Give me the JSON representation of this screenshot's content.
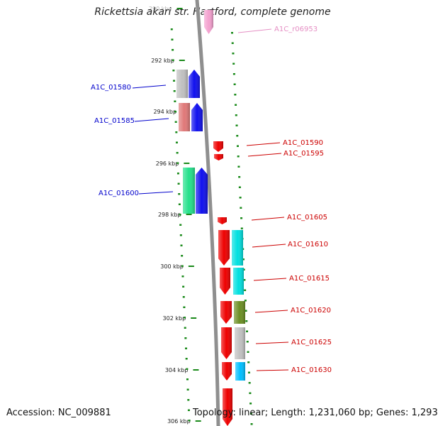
{
  "title": "Rickettsia akari str. Hartford, complete genome",
  "footer": {
    "accession": "Accession: NC_009881",
    "stats": "Topology: linear; Length: 1,231,060 bp; Genes: 1,293"
  },
  "scale_ticks": [
    "290 kbp",
    "292 kbp",
    "294 kbp",
    "296 kbp",
    "298 kbp",
    "300 kbp",
    "302 kbp",
    "304 kbp",
    "306 kbp"
  ],
  "colors": {
    "backbone": "#8f8f8f",
    "minor_tick": "#1a8a1a",
    "plus_label": "#0000cc",
    "minus_label": "#cc0000",
    "rna_label": "#e58fc4"
  },
  "genes": [
    {
      "label": "A1C_r06953",
      "strand": "minus",
      "color": "#f4a0cf"
    },
    {
      "label": "A1C_01580",
      "strand": "plus",
      "color": "#1010ee",
      "cog_color": "#c0c0c0"
    },
    {
      "label": "A1C_01585",
      "strand": "plus",
      "color": "#1010ee",
      "cog_color": "#e07878"
    },
    {
      "label": "A1C_01590",
      "strand": "minus",
      "color": "#ee0000"
    },
    {
      "label": "A1C_01595",
      "strand": "minus",
      "color": "#ee0000"
    },
    {
      "label": "A1C_01600",
      "strand": "plus",
      "color": "#1010ee",
      "cog_color": "#22e08a"
    },
    {
      "label": "A1C_01605",
      "strand": "minus",
      "color": "#ee0000"
    },
    {
      "label": "A1C_01610",
      "strand": "minus",
      "color": "#ee0000",
      "cog_color": "#00e0e0"
    },
    {
      "label": "A1C_01615",
      "strand": "minus",
      "color": "#ee0000",
      "cog_color": "#00e0e0"
    },
    {
      "label": "A1C_01620",
      "strand": "minus",
      "color": "#ee0000",
      "cog_color": "#6b8e23"
    },
    {
      "label": "A1C_01625",
      "strand": "minus",
      "color": "#ee0000",
      "cog_color": "#c0c0c0"
    },
    {
      "label": "A1C_01630",
      "strand": "minus",
      "color": "#ee0000",
      "cog_color": "#00bfff"
    },
    {
      "label": "",
      "strand": "minus",
      "color": "#ee0000"
    }
  ]
}
